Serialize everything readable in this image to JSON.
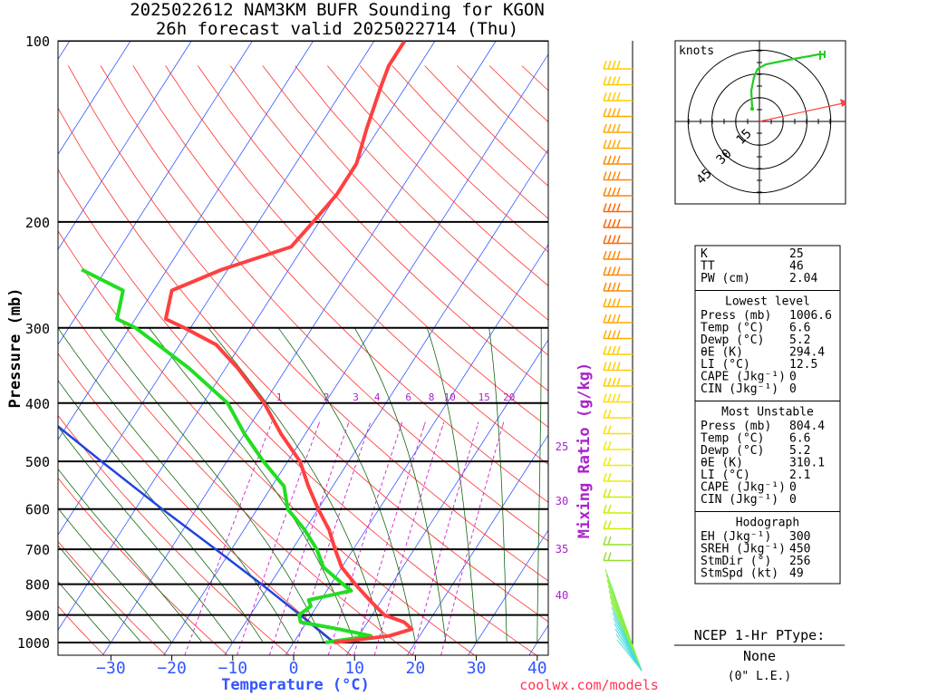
{
  "title_line1": "2025022612 NAM3KM BUFR Sounding for KGON",
  "title_line2": "26h forecast valid 2025022714 (Thu)",
  "footer_credit": "coolwx.com/models",
  "colors": {
    "temperature": "#ff4040",
    "dewpoint": "#22dd22",
    "parcel": "#2244dd",
    "mixing_ratio": "#cc22cc",
    "isotherm": "#3355ff",
    "dry_adiabat": "#ff3030",
    "moist_adiabat": "#116611",
    "axis_label": "#3355ff",
    "mixing_label": "#aa22cc"
  },
  "chart_data": {
    "type": "skew-t",
    "xlabel": "Temperature (°C)",
    "ylabel": "Pressure (mb)",
    "right_label": "Mixing Ratio (g/kg)",
    "pressure_ticks": [
      "100",
      "200",
      "300",
      "400",
      "500",
      "600",
      "700",
      "800",
      "900",
      "1000"
    ],
    "pressure_values": [
      100,
      200,
      300,
      400,
      500,
      600,
      700,
      800,
      900,
      1000
    ],
    "temp_ticks": [
      "−30",
      "−20",
      "−10",
      "0",
      "10",
      "20",
      "30",
      "40"
    ],
    "temp_values": [
      -30,
      -20,
      -10,
      0,
      10,
      20,
      30,
      40
    ],
    "mixing_ratio_labels": [
      "1",
      "2",
      "3",
      "4",
      "6",
      "8",
      "10",
      "15",
      "20"
    ],
    "mixing_ratio_values": [
      1,
      2,
      3,
      4,
      6,
      8,
      10,
      15,
      20
    ],
    "theta_e_labels": [
      "25",
      "30",
      "35",
      "40"
    ],
    "temperature_profile": [
      [
        1000,
        6.6
      ],
      [
        975,
        15
      ],
      [
        950,
        18
      ],
      [
        925,
        16
      ],
      [
        900,
        12
      ],
      [
        850,
        8
      ],
      [
        800,
        4
      ],
      [
        750,
        0
      ],
      [
        700,
        -3
      ],
      [
        650,
        -6
      ],
      [
        600,
        -10
      ],
      [
        550,
        -14
      ],
      [
        500,
        -18
      ],
      [
        450,
        -24
      ],
      [
        400,
        -30
      ],
      [
        350,
        -38
      ],
      [
        320,
        -44
      ],
      [
        300,
        -51
      ],
      [
        290,
        -55
      ],
      [
        260,
        -57
      ],
      [
        240,
        -51
      ],
      [
        220,
        -42
      ],
      [
        200,
        -41
      ],
      [
        180,
        -40
      ],
      [
        160,
        -40
      ],
      [
        140,
        -42
      ],
      [
        120,
        -44
      ],
      [
        110,
        -45
      ],
      [
        100,
        -45
      ]
    ],
    "dewpoint_profile": [
      [
        1000,
        5.2
      ],
      [
        975,
        12
      ],
      [
        950,
        6
      ],
      [
        925,
        -1
      ],
      [
        900,
        -2
      ],
      [
        870,
        -1
      ],
      [
        850,
        -2
      ],
      [
        820,
        4
      ],
      [
        800,
        2
      ],
      [
        750,
        -3
      ],
      [
        700,
        -6
      ],
      [
        650,
        -10
      ],
      [
        600,
        -15
      ],
      [
        550,
        -18
      ],
      [
        500,
        -24
      ],
      [
        450,
        -30
      ],
      [
        400,
        -36
      ],
      [
        350,
        -46
      ],
      [
        300,
        -59
      ],
      [
        290,
        -63
      ],
      [
        260,
        -65
      ],
      [
        240,
        -74
      ]
    ],
    "parcel_profile": [
      [
        1000,
        6.6
      ],
      [
        900,
        -1.8
      ],
      [
        800,
        -11.4
      ],
      [
        700,
        -22.6
      ],
      [
        600,
        -35.6
      ],
      [
        500,
        -50.6
      ],
      [
        400,
        -68.6
      ],
      [
        300,
        -92.2
      ],
      [
        280,
        -97.6
      ]
    ],
    "hodograph": {
      "label": "knots",
      "ring_labels": [
        "15",
        "30",
        "45"
      ],
      "ring_values": [
        15,
        30,
        45
      ]
    }
  },
  "stats": {
    "top": [
      {
        "k": "K",
        "v": "25"
      },
      {
        "k": "TT",
        "v": "46"
      },
      {
        "k": "PW (cm)",
        "v": "2.04"
      }
    ],
    "lowest_title": "Lowest level",
    "lowest": [
      {
        "k": "Press (mb)",
        "v": "1006.6"
      },
      {
        "k": "Temp (°C)",
        "v": "6.6"
      },
      {
        "k": "Dewp (°C)",
        "v": "5.2"
      },
      {
        "k": "θE (K)",
        "v": "294.4"
      },
      {
        "k": "LI (°C)",
        "v": "12.5"
      },
      {
        "k": "CAPE (Jkg⁻¹)",
        "v": "0"
      },
      {
        "k": "CIN (Jkg⁻¹)",
        "v": "0"
      }
    ],
    "unstable_title": "Most Unstable",
    "unstable": [
      {
        "k": "Press (mb)",
        "v": "804.4"
      },
      {
        "k": "Temp (°C)",
        "v": "6.6"
      },
      {
        "k": "Dewp (°C)",
        "v": "5.2"
      },
      {
        "k": "θE (K)",
        "v": "310.1"
      },
      {
        "k": "LI (°C)",
        "v": "2.1"
      },
      {
        "k": "CAPE (Jkg⁻¹)",
        "v": "0"
      },
      {
        "k": "CIN (Jkg⁻¹)",
        "v": "0"
      }
    ],
    "hodo_title": "Hodograph",
    "hodo": [
      {
        "k": "EH (Jkg⁻¹)",
        "v": "300"
      },
      {
        "k": "SREH (Jkg⁻¹)",
        "v": "450"
      },
      {
        "k": "StmDir (°)",
        "v": "256"
      },
      {
        "k": "StmSpd (kt)",
        "v": "49"
      }
    ]
  },
  "ptype": {
    "title": "NCEP 1-Hr PType:",
    "value": "None",
    "sub": "(0\" L.E.)"
  }
}
